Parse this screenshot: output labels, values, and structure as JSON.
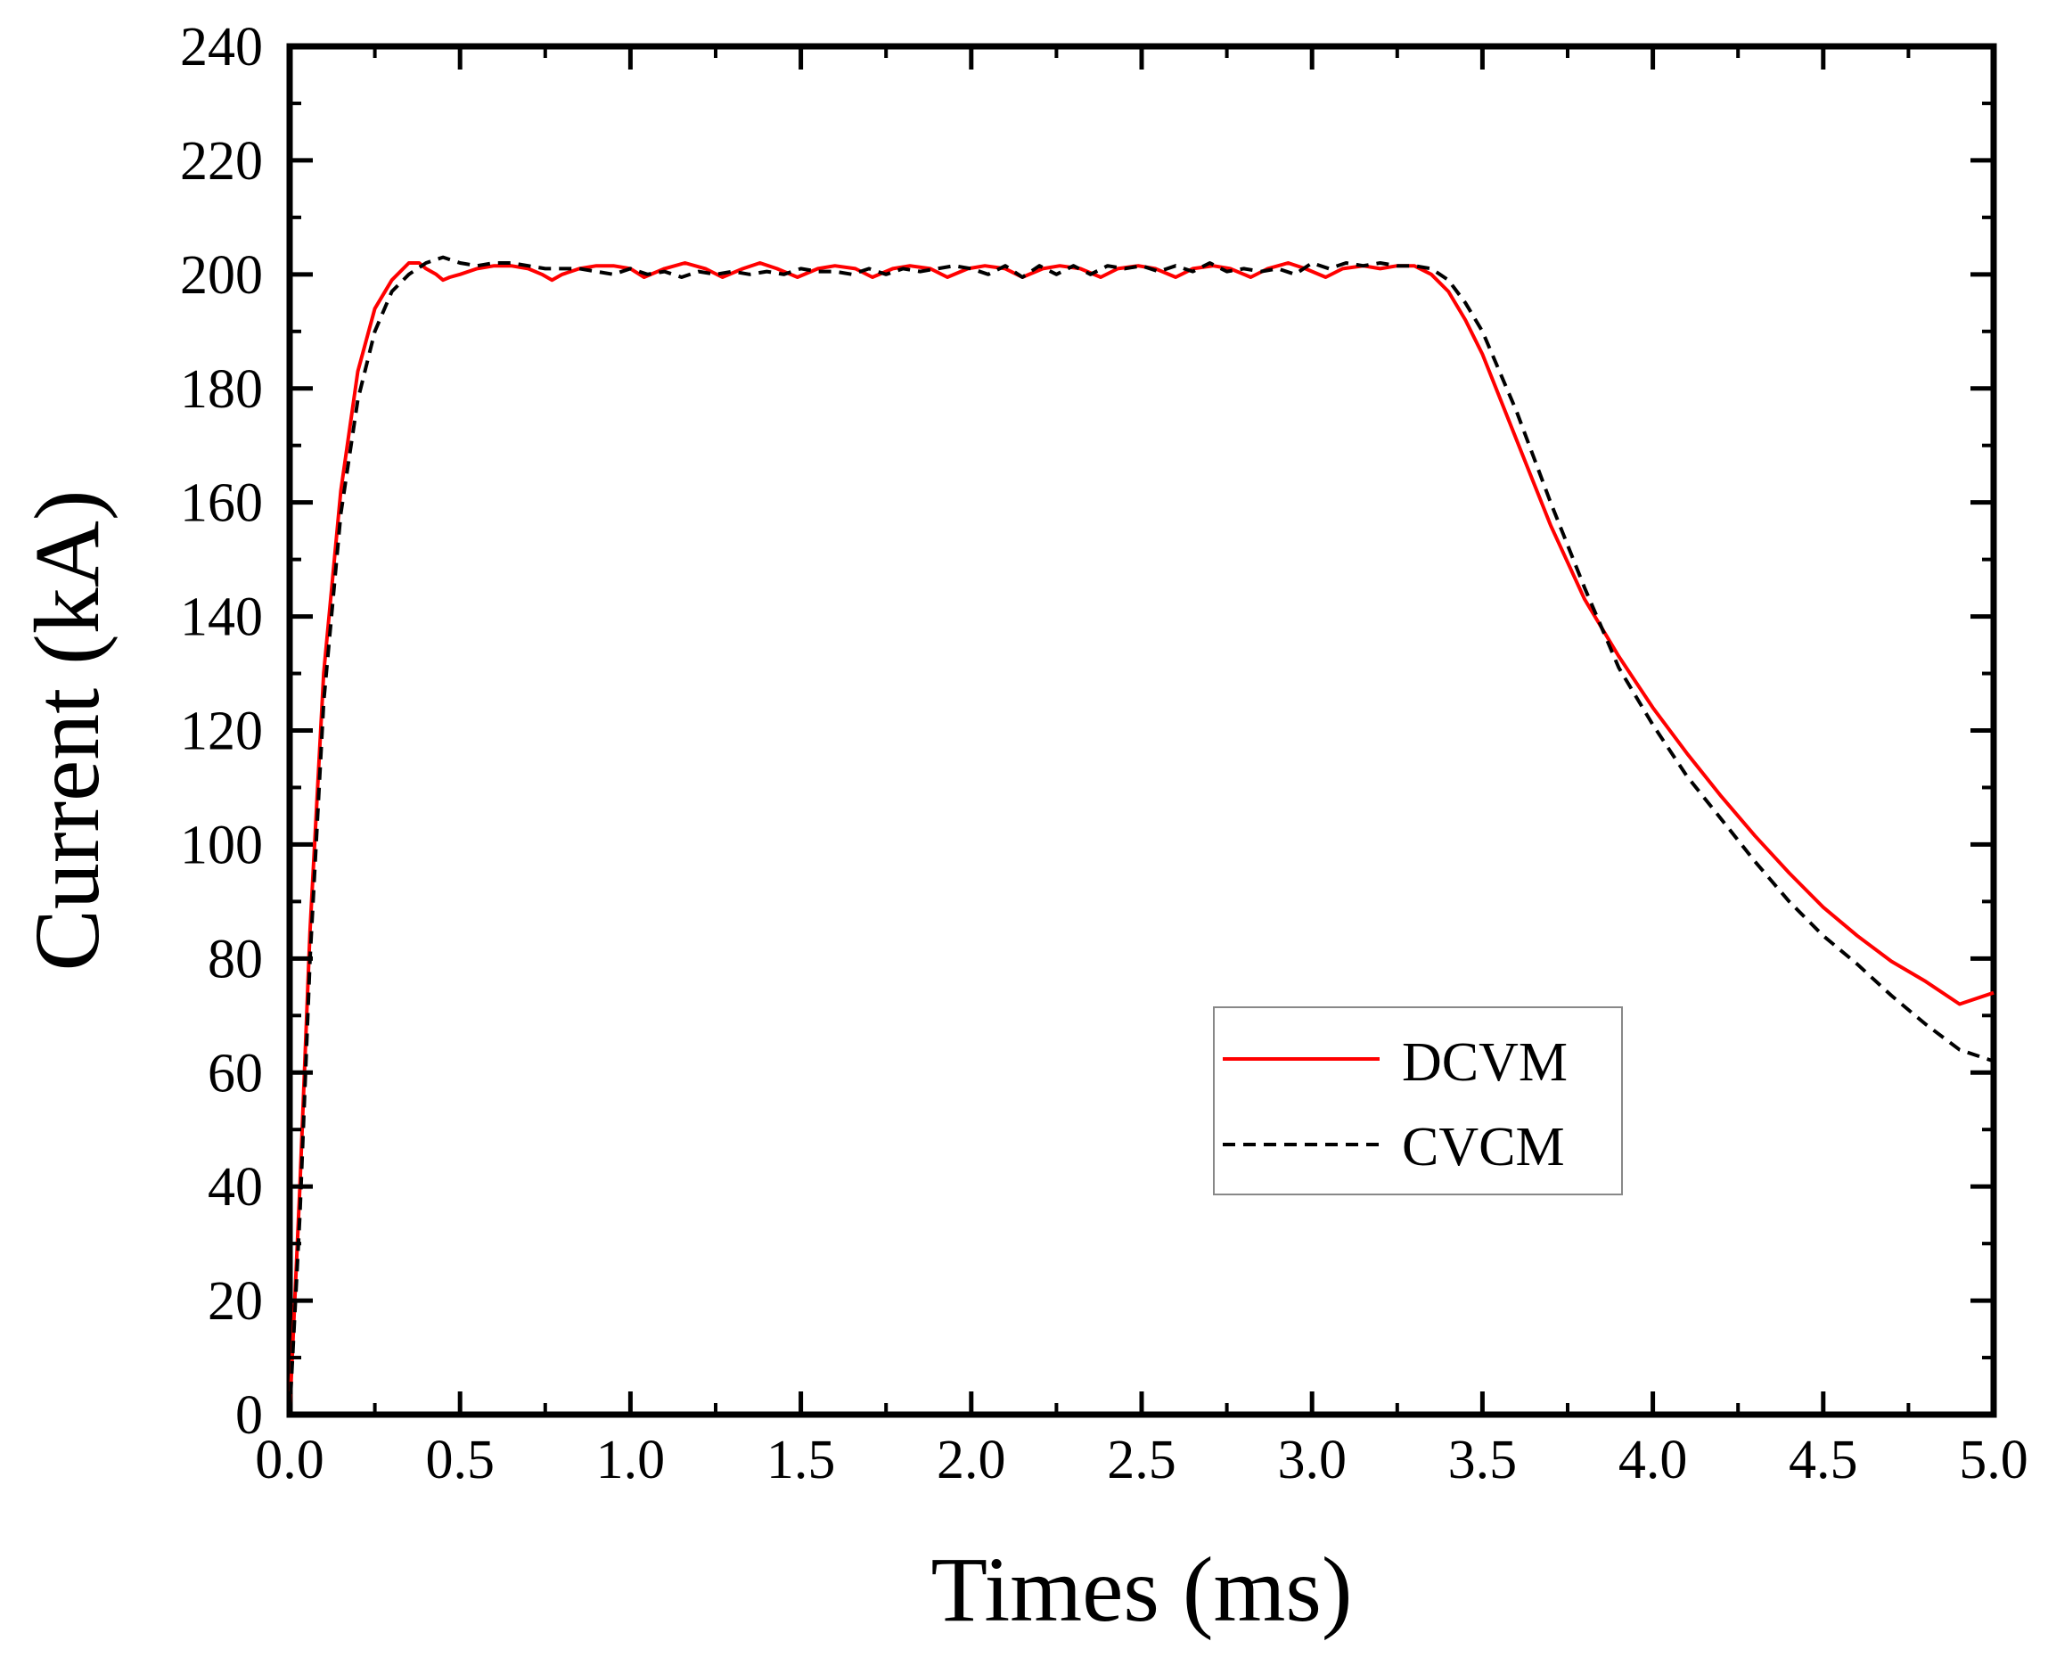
{
  "chart_data": {
    "type": "line",
    "title": "",
    "xlabel": "Times (ms)",
    "ylabel": "Current (kA)",
    "xlim": [
      0,
      5
    ],
    "ylim": [
      0,
      240
    ],
    "xticks": [
      "0.0",
      "0.5",
      "1.0",
      "1.5",
      "2.0",
      "2.5",
      "3.0",
      "3.5",
      "4.0",
      "4.5",
      "5.0"
    ],
    "yticks": [
      "0",
      "20",
      "40",
      "60",
      "80",
      "100",
      "120",
      "140",
      "160",
      "180",
      "200",
      "220",
      "240"
    ],
    "grid": false,
    "legend_position": "lower-right",
    "series": [
      {
        "name": "DCVM",
        "color": "#ff0000",
        "style": "solid",
        "x": [
          0,
          0.03,
          0.06,
          0.1,
          0.15,
          0.2,
          0.25,
          0.3,
          0.35,
          0.38,
          0.4,
          0.43,
          0.45,
          0.47,
          0.5,
          0.55,
          0.6,
          0.65,
          0.7,
          0.74,
          0.77,
          0.8,
          0.85,
          0.9,
          0.95,
          1.0,
          1.04,
          1.1,
          1.16,
          1.22,
          1.27,
          1.33,
          1.38,
          1.43,
          1.49,
          1.55,
          1.6,
          1.66,
          1.71,
          1.77,
          1.82,
          1.88,
          1.93,
          1.99,
          2.04,
          2.1,
          2.15,
          2.21,
          2.26,
          2.32,
          2.38,
          2.43,
          2.49,
          2.54,
          2.6,
          2.65,
          2.71,
          2.76,
          2.82,
          2.87,
          2.93,
          2.98,
          3.04,
          3.09,
          3.15,
          3.2,
          3.25,
          3.3,
          3.35,
          3.4,
          3.45,
          3.5,
          3.6,
          3.7,
          3.8,
          3.9,
          4.0,
          4.1,
          4.2,
          4.3,
          4.4,
          4.5,
          4.6,
          4.7,
          4.8,
          4.9,
          5.0
        ],
        "values": [
          0,
          40,
          85,
          130,
          162,
          183,
          194,
          199,
          202,
          202,
          201,
          200,
          199,
          199.5,
          200,
          201,
          201.5,
          201.5,
          201,
          200,
          199,
          200,
          201,
          201.5,
          201.5,
          201,
          199.5,
          201,
          202,
          201,
          199.5,
          201,
          202,
          201,
          199.5,
          201,
          201.5,
          201,
          199.5,
          201,
          201.5,
          201,
          199.5,
          201,
          201.5,
          201,
          199.5,
          201,
          201.5,
          201,
          199.5,
          201,
          201.5,
          201,
          199.5,
          201,
          201.5,
          201,
          199.5,
          201,
          202,
          201,
          199.5,
          201,
          201.5,
          201,
          201.5,
          201.5,
          200,
          197,
          192,
          186,
          171,
          156,
          143,
          133,
          124,
          116,
          108.5,
          101.5,
          95,
          89,
          84,
          79.5,
          76,
          72,
          74
        ]
      },
      {
        "name": "CVCM",
        "color": "#000000",
        "style": "dashed",
        "x": [
          0,
          0.03,
          0.06,
          0.1,
          0.15,
          0.2,
          0.25,
          0.3,
          0.35,
          0.4,
          0.45,
          0.5,
          0.55,
          0.6,
          0.65,
          0.7,
          0.75,
          0.8,
          0.85,
          0.9,
          0.95,
          1.0,
          1.05,
          1.1,
          1.15,
          1.2,
          1.25,
          1.3,
          1.35,
          1.4,
          1.45,
          1.5,
          1.55,
          1.6,
          1.65,
          1.7,
          1.75,
          1.8,
          1.85,
          1.9,
          1.95,
          2.0,
          2.05,
          2.1,
          2.15,
          2.2,
          2.25,
          2.3,
          2.35,
          2.4,
          2.45,
          2.5,
          2.55,
          2.6,
          2.65,
          2.7,
          2.75,
          2.8,
          2.85,
          2.9,
          2.95,
          3.0,
          3.05,
          3.1,
          3.15,
          3.2,
          3.25,
          3.3,
          3.35,
          3.4,
          3.45,
          3.5,
          3.6,
          3.7,
          3.8,
          3.9,
          4.0,
          4.1,
          4.2,
          4.3,
          4.4,
          4.5,
          4.6,
          4.7,
          4.8,
          4.9,
          5.0
        ],
        "values": [
          0,
          35,
          80,
          125,
          158,
          178,
          190,
          197,
          200,
          202,
          203,
          202,
          201.5,
          202,
          202,
          201.5,
          201,
          201,
          201,
          200.5,
          200,
          201,
          200,
          200.5,
          199.5,
          200.5,
          200,
          200.5,
          200,
          200.5,
          200,
          201,
          200.5,
          200.5,
          200,
          201,
          200,
          201,
          200.5,
          201,
          201.5,
          201,
          200,
          201.5,
          199.5,
          201.5,
          200,
          201.5,
          200,
          201.5,
          201,
          201.5,
          200.5,
          201.5,
          200.5,
          202,
          200.5,
          201,
          200.5,
          201,
          200,
          202,
          201,
          202,
          201.5,
          202,
          201.5,
          201.5,
          201,
          199,
          195,
          190,
          176,
          160,
          145,
          131,
          121,
          112,
          104.5,
          97,
          90,
          84,
          79,
          73.5,
          68.5,
          64,
          62
        ]
      }
    ]
  }
}
